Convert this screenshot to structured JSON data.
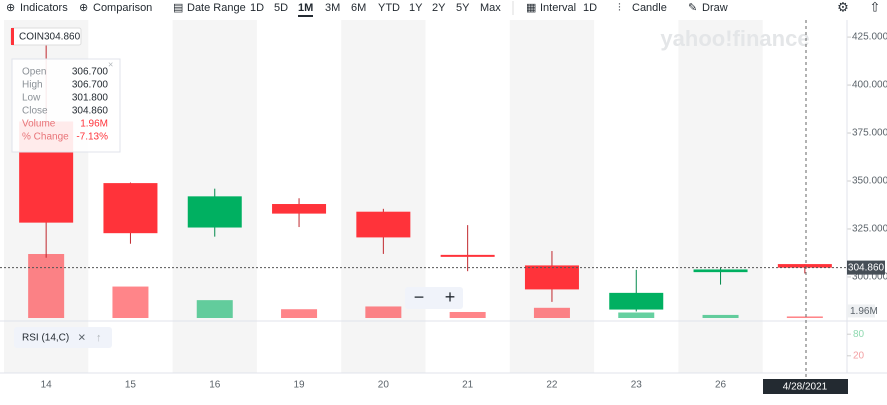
{
  "toolbar": {
    "items": [
      "Indicators",
      "Comparison",
      "Date Range",
      "1D",
      "5D",
      "1M",
      "3M",
      "6M",
      "YTD",
      "1Y",
      "2Y",
      "5Y",
      "Max",
      "Interval",
      "1D",
      "Candle",
      "Draw"
    ],
    "active": "1M"
  },
  "watermark": "yahoo!finance",
  "tooltip": {
    "rows": [
      [
        "Open",
        "306.700"
      ],
      [
        "High",
        "306.700"
      ],
      [
        "Low",
        "301.800"
      ],
      [
        "Close",
        "304.860"
      ],
      [
        "Volume",
        "1.96M"
      ],
      [
        "% Change",
        "-7.13%"
      ]
    ]
  },
  "crosshair_date": "4/28/2021",
  "chart_data": {
    "type": "candlestick",
    "symbol": "COIN",
    "last_price": {
      "value": 304.86,
      "label": "304.860"
    },
    "categories": [
      "14",
      "15",
      "16",
      "19",
      "20",
      "21",
      "22",
      "23",
      "26",
      null
    ],
    "open": [
      381,
      348.9,
      325.75,
      338,
      334,
      311.5,
      306,
      283,
      302.5,
      306.7
    ],
    "high": [
      429.5,
      349.2,
      346,
      341,
      335.5,
      327,
      313.5,
      303.7,
      305,
      306.7
    ],
    "low": [
      310,
      317.3,
      321,
      326,
      312,
      303,
      287,
      282,
      296,
      301.8
    ],
    "close": [
      328.3,
      322.8,
      342,
      333,
      320.6,
      310.6,
      293.5,
      291.7,
      303.9,
      304.86
    ],
    "volume": [
      81000000,
      39800000,
      22600000,
      11100000,
      14600000,
      7600000,
      12900000,
      6970000,
      3900000,
      1960000
    ],
    "volume_label": {
      "value": 1960000,
      "label": "1.96M"
    },
    "up_color": "#00b061",
    "down_color": "#ff333a",
    "ylim": [
      278.6,
      433.9
    ],
    "yticks": [
      {
        "value": 300,
        "label": "300.000"
      },
      {
        "value": 325,
        "label": "325.000"
      },
      {
        "value": 350,
        "label": "350.000"
      },
      {
        "value": 375,
        "label": "375.000"
      },
      {
        "value": 400,
        "label": "400.000"
      },
      {
        "value": 425,
        "label": "425.000"
      }
    ],
    "rsi": {
      "label": "RSI (14,C)",
      "ylim": [
        0,
        100
      ],
      "yticks": [
        20,
        80
      ]
    }
  }
}
